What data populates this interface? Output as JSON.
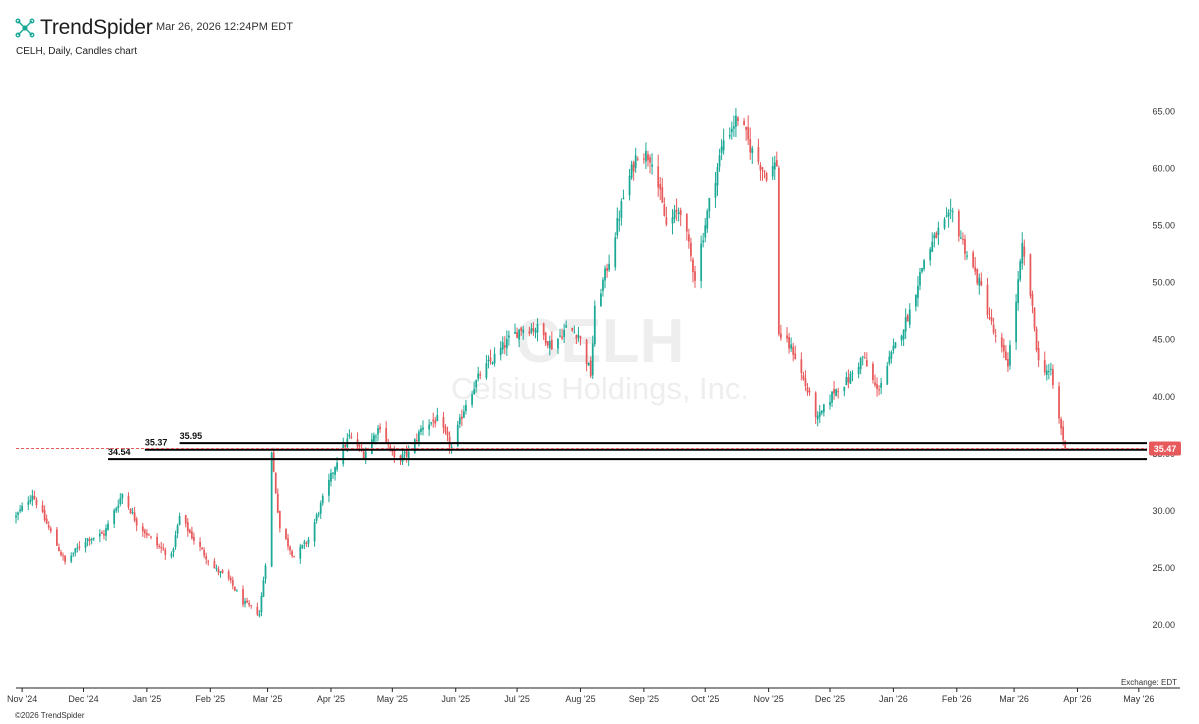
{
  "header": {
    "brand": "TrendSpider",
    "timestamp": "Mar 26, 2026 12:24PM EDT",
    "subtitle": "CELH, Daily, Candles chart"
  },
  "watermark": {
    "ticker": "CELH",
    "company": "Celsius Holdings, Inc."
  },
  "footer": {
    "copyright": "©2026 TrendSpider",
    "exchange": "Exchange: EDT"
  },
  "colors": {
    "up": "#1ba996",
    "down": "#e8595b",
    "level_line": "#000000",
    "price_label": "#e8595b"
  },
  "chart_data": {
    "type": "candlestick",
    "ticker": "CELH",
    "interval": "Daily",
    "y_ticks": [
      "20.00",
      "25.00",
      "30.00",
      "35.00",
      "40.00",
      "45.00",
      "50.00",
      "55.00",
      "60.00",
      "65.00"
    ],
    "y_range": [
      14.5,
      69.5
    ],
    "x_ticks": [
      "Nov '24",
      "Dec '24",
      "Jan '25",
      "Feb '25",
      "Mar '25",
      "Apr '25",
      "May '25",
      "Jun '25",
      "Jul '25",
      "Aug '25",
      "Sep '25",
      "Oct '25",
      "Nov '25",
      "Dec '25",
      "Jan '26",
      "Feb '26",
      "Mar '26",
      "Apr '26",
      "May '26"
    ],
    "x_tick_dates": [
      "2024-11-01",
      "2024-12-01",
      "2025-01-01",
      "2025-02-01",
      "2025-03-01",
      "2025-04-01",
      "2025-05-01",
      "2025-06-01",
      "2025-07-01",
      "2025-08-01",
      "2025-09-01",
      "2025-10-01",
      "2025-11-01",
      "2025-12-01",
      "2026-01-01",
      "2026-02-01",
      "2026-03-01",
      "2026-04-01",
      "2026-05-01"
    ],
    "x_range": [
      "2024-10-29",
      "2026-05-05"
    ],
    "current_price": 35.47,
    "current_price_label": "35.47",
    "levels": [
      {
        "label": "35.95",
        "value": 35.95,
        "start": "2025-01-17"
      },
      {
        "label": "35.37",
        "value": 35.37,
        "start": "2024-12-31"
      },
      {
        "label": "34.54",
        "value": 34.54,
        "start": "2024-12-13"
      }
    ],
    "anchors": [
      [
        "2024-10-29",
        29.5
      ],
      [
        "2024-11-06",
        31.5
      ],
      [
        "2024-11-14",
        28.5
      ],
      [
        "2024-11-22",
        25.5
      ],
      [
        "2024-12-02",
        27.5
      ],
      [
        "2024-12-11",
        28.0
      ],
      [
        "2024-12-20",
        31.5
      ],
      [
        "2024-12-27",
        29.0
      ],
      [
        "2025-01-06",
        27.0
      ],
      [
        "2025-01-13",
        26.0
      ],
      [
        "2025-01-17",
        29.5
      ],
      [
        "2025-01-24",
        27.5
      ],
      [
        "2025-02-03",
        25.0
      ],
      [
        "2025-02-10",
        24.0
      ],
      [
        "2025-02-17",
        22.0
      ],
      [
        "2025-02-25",
        21.0
      ],
      [
        "2025-02-28",
        25.5
      ],
      [
        "2025-03-03",
        35.0
      ],
      [
        "2025-03-07",
        28.5
      ],
      [
        "2025-03-14",
        26.0
      ],
      [
        "2025-03-21",
        27.5
      ],
      [
        "2025-03-28",
        31.0
      ],
      [
        "2025-04-04",
        34.5
      ],
      [
        "2025-04-10",
        36.5
      ],
      [
        "2025-04-17",
        35.0
      ],
      [
        "2025-04-25",
        37.5
      ],
      [
        "2025-05-02",
        34.5
      ],
      [
        "2025-05-09",
        35.0
      ],
      [
        "2025-05-16",
        37.5
      ],
      [
        "2025-05-23",
        38.0
      ],
      [
        "2025-05-30",
        35.5
      ],
      [
        "2025-06-06",
        39.5
      ],
      [
        "2025-06-13",
        42.0
      ],
      [
        "2025-06-20",
        43.5
      ],
      [
        "2025-06-27",
        45.0
      ],
      [
        "2025-07-03",
        46.0
      ],
      [
        "2025-07-11",
        46.0
      ],
      [
        "2025-07-18",
        44.5
      ],
      [
        "2025-07-25",
        46.0
      ],
      [
        "2025-07-31",
        45.5
      ],
      [
        "2025-08-06",
        42.0
      ],
      [
        "2025-08-08",
        47.5
      ],
      [
        "2025-08-15",
        52.0
      ],
      [
        "2025-08-22",
        57.5
      ],
      [
        "2025-08-29",
        61.5
      ],
      [
        "2025-09-05",
        61.0
      ],
      [
        "2025-09-12",
        55.0
      ],
      [
        "2025-09-19",
        56.5
      ],
      [
        "2025-09-26",
        50.5
      ],
      [
        "2025-10-03",
        57.0
      ],
      [
        "2025-10-10",
        62.5
      ],
      [
        "2025-10-17",
        64.5
      ],
      [
        "2025-10-24",
        61.5
      ],
      [
        "2025-10-31",
        59.5
      ],
      [
        "2025-11-05",
        60.5
      ],
      [
        "2025-11-06",
        45.5
      ],
      [
        "2025-11-13",
        44.0
      ],
      [
        "2025-11-20",
        40.5
      ],
      [
        "2025-11-25",
        38.0
      ],
      [
        "2025-12-03",
        40.5
      ],
      [
        "2025-12-10",
        41.5
      ],
      [
        "2025-12-17",
        43.5
      ],
      [
        "2025-12-24",
        40.5
      ],
      [
        "2026-01-02",
        44.5
      ],
      [
        "2026-01-09",
        47.5
      ],
      [
        "2026-01-16",
        52.0
      ],
      [
        "2026-01-23",
        54.5
      ],
      [
        "2026-01-30",
        56.0
      ],
      [
        "2026-02-06",
        52.5
      ],
      [
        "2026-02-13",
        49.5
      ],
      [
        "2026-02-20",
        45.0
      ],
      [
        "2026-02-26",
        43.0
      ],
      [
        "2026-03-02",
        48.5
      ],
      [
        "2026-03-05",
        53.0
      ],
      [
        "2026-03-09",
        49.0
      ],
      [
        "2026-03-13",
        43.0
      ],
      [
        "2026-03-19",
        42.0
      ],
      [
        "2026-03-23",
        38.0
      ],
      [
        "2026-03-26",
        35.5
      ]
    ]
  }
}
